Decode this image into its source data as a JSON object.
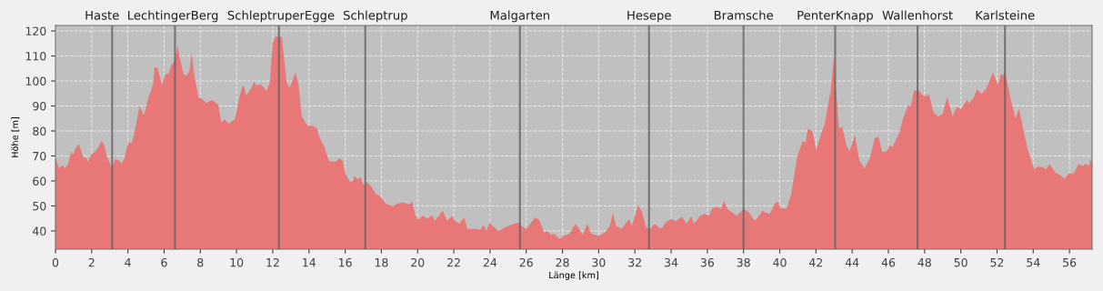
{
  "chart_data": {
    "type": "area",
    "xlabel": "Länge [km]",
    "ylabel": "Höhe [m]",
    "x": [
      0,
      0.2,
      0.37,
      0.54,
      0.7,
      0.87,
      0.95,
      1.12,
      1.29,
      1.54,
      1.71,
      1.79,
      1.96,
      2.21,
      2.38,
      2.54,
      2.71,
      2.8,
      3.05,
      3.13,
      3.3,
      3.55,
      3.63,
      3.8,
      3.97,
      4.05,
      4.22,
      4.39,
      4.64,
      4.89,
      5.14,
      5.39,
      5.47,
      5.64,
      5.89,
      6.06,
      6.23,
      6.39,
      6.6,
      6.73,
      6.9,
      7.07,
      7.23,
      7.4,
      7.52,
      7.65,
      7.9,
      8.07,
      8.32,
      8.66,
      8.99,
      9.16,
      9.33,
      9.58,
      9.74,
      9.91,
      10.16,
      10.33,
      10.41,
      10.53,
      10.83,
      10.97,
      11.08,
      11.33,
      11.67,
      11.84,
      12.0,
      12.17,
      12.42,
      12.5,
      12.76,
      12.93,
      13.26,
      13.43,
      13.6,
      13.93,
      14.18,
      14.43,
      14.6,
      14.85,
      15.1,
      15.44,
      15.69,
      15.85,
      16.02,
      16.27,
      16.44,
      16.52,
      16.69,
      16.86,
      17.03,
      17.19,
      17.44,
      17.69,
      17.94,
      18.25,
      18.62,
      18.87,
      19.2,
      19.54,
      19.7,
      19.87,
      20.04,
      20.29,
      20.54,
      20.79,
      20.96,
      21.38,
      21.63,
      21.91,
      22.05,
      22.3,
      22.58,
      22.75,
      23.21,
      23.47,
      23.64,
      23.8,
      23.97,
      24.22,
      24.47,
      24.9,
      25.31,
      25.6,
      25.73,
      25.98,
      26.2,
      26.49,
      26.71,
      26.99,
      27.16,
      27.37,
      27.57,
      27.83,
      28.08,
      28.41,
      28.71,
      28.95,
      29.11,
      29.38,
      29.58,
      30.0,
      30.34,
      30.62,
      30.79,
      30.96,
      31.26,
      31.68,
      31.84,
      32.18,
      32.4,
      32.6,
      32.8,
      33.1,
      33.35,
      33.52,
      33.68,
      34.02,
      34.27,
      34.6,
      34.86,
      35.11,
      35.28,
      35.61,
      35.86,
      36.11,
      36.25,
      36.58,
      36.75,
      36.92,
      37.12,
      37.62,
      38.0,
      38.29,
      38.42,
      38.62,
      38.79,
      39.04,
      39.21,
      39.46,
      39.71,
      39.88,
      40.05,
      40.38,
      40.63,
      40.97,
      41.27,
      41.43,
      41.55,
      41.8,
      42.02,
      42.23,
      42.48,
      42.81,
      42.98,
      43.11,
      43.28,
      43.45,
      43.68,
      43.85,
      44.15,
      44.4,
      44.69,
      44.99,
      45.24,
      45.46,
      45.66,
      45.91,
      46.08,
      46.24,
      46.41,
      46.63,
      46.79,
      47.08,
      47.24,
      47.41,
      47.63,
      47.96,
      48.25,
      48.5,
      48.75,
      49.0,
      49.25,
      49.54,
      49.76,
      50.0,
      50.34,
      50.47,
      50.71,
      50.9,
      51.15,
      51.43,
      51.77,
      52.05,
      52.22,
      52.32,
      52.44,
      52.69,
      53.02,
      53.22,
      53.44,
      53.69,
      54.06,
      54.23,
      54.53,
      54.7,
      54.9,
      55.2,
      55.54,
      55.74,
      55.95,
      56.24,
      56.51,
      56.71,
      56.91,
      57.07,
      57.17,
      57.25
    ],
    "series": [
      {
        "color": "#e87878",
        "values": [
          69.3,
          65.1,
          66.3,
          65.1,
          67,
          71.8,
          70.5,
          73,
          74.8,
          69.3,
          69.3,
          67.5,
          70.5,
          71.8,
          73.6,
          76,
          74.2,
          70.5,
          66.3,
          65.7,
          68.7,
          68.1,
          66.9,
          68.7,
          74.2,
          75.4,
          75.4,
          80.2,
          89.9,
          86.3,
          93.6,
          98.4,
          105.5,
          105.1,
          98.4,
          102.7,
          102.7,
          106.3,
          108.1,
          114.4,
          108.1,
          102.7,
          102.1,
          103.9,
          111.2,
          103.3,
          93.3,
          93,
          91.2,
          92.4,
          90.5,
          83.3,
          84.5,
          82.9,
          83.9,
          84.5,
          93.6,
          97.8,
          97.8,
          94.2,
          97.2,
          99.9,
          98.2,
          98.7,
          96,
          99.6,
          115.4,
          117.8,
          117.6,
          117.8,
          99.6,
          97.2,
          103.5,
          98.4,
          85.7,
          82.1,
          82.1,
          81.2,
          77.2,
          73.6,
          68.1,
          67.5,
          69.1,
          68.1,
          62.7,
          59.6,
          60.2,
          62.1,
          60.6,
          61.5,
          58.2,
          59.6,
          57.8,
          54.8,
          53.8,
          50.9,
          49.9,
          50.9,
          51.4,
          50.5,
          51.8,
          46.3,
          44.5,
          46.1,
          44.8,
          46.3,
          44.1,
          48.1,
          44.1,
          46.1,
          44.1,
          42.9,
          45.3,
          40.8,
          40.8,
          40.5,
          42.4,
          40,
          43.3,
          41.5,
          40,
          41.7,
          42.9,
          43.3,
          42.1,
          40.8,
          42.7,
          45.3,
          44.5,
          39.3,
          40,
          38.4,
          38.8,
          36.8,
          38.1,
          39,
          42.9,
          40.5,
          38.4,
          42.9,
          39,
          38.1,
          39.3,
          42.1,
          47.3,
          42.1,
          40.8,
          44.8,
          42.1,
          50.5,
          47.5,
          41.7,
          40.5,
          42.9,
          41.2,
          41.2,
          43.3,
          44.8,
          43.9,
          45.7,
          42.9,
          45.7,
          42.9,
          46.1,
          46.9,
          46.1,
          49,
          49.7,
          48.7,
          52.1,
          48.7,
          46.1,
          48.7,
          47.5,
          46.1,
          44.1,
          45.3,
          48.1,
          47.3,
          46.9,
          50.9,
          51.8,
          49,
          49,
          54.8,
          69.9,
          76,
          75.4,
          80.8,
          80,
          72.4,
          77.8,
          82.7,
          96,
          109.3,
          96,
          80.8,
          81.7,
          74.2,
          71.8,
          78.4,
          68.1,
          65.1,
          69.3,
          77.2,
          77.6,
          71.5,
          71.8,
          74.2,
          73.6,
          76.4,
          79.6,
          84.5,
          90.2,
          89.9,
          96,
          96.5,
          93.8,
          94.5,
          87.5,
          85.7,
          86.9,
          93.6,
          85.7,
          89.6,
          88.7,
          92.4,
          91.1,
          93.3,
          96.6,
          94.8,
          97.2,
          103.5,
          98.4,
          102.7,
          102.1,
          103.9,
          94.8,
          85.1,
          89,
          80.8,
          72.9,
          64.5,
          65.7,
          65.5,
          64.5,
          66.7,
          63.5,
          62.1,
          60.8,
          63,
          63,
          66.9,
          65.9,
          66.9,
          65.9,
          68.7,
          66.9
        ]
      }
    ],
    "xlim": [
      0,
      57.25
    ],
    "ylim": [
      32.7,
      122.2
    ],
    "xticks": [
      0,
      2,
      4,
      6,
      8,
      10,
      12,
      14,
      16,
      18,
      20,
      22,
      24,
      26,
      28,
      30,
      32,
      34,
      36,
      38,
      40,
      42,
      44,
      46,
      48,
      50,
      52,
      54,
      56
    ],
    "yticks": [
      40,
      50,
      60,
      70,
      80,
      90,
      100,
      110,
      120
    ],
    "grid": true,
    "ref_lines": [
      {
        "axis": "x",
        "value": 3.13,
        "label": "Haste",
        "color": "#606060"
      },
      {
        "axis": "x",
        "value": 6.6,
        "label": "LechtingerBerg",
        "color": "#606060"
      },
      {
        "axis": "x",
        "value": 12.34,
        "label": "SchleptruperEgge",
        "color": "#606060"
      },
      {
        "axis": "x",
        "value": 17.11,
        "label": "Schleptrup",
        "color": "#606060"
      },
      {
        "axis": "x",
        "value": 25.65,
        "label": "Malgarten",
        "color": "#606060"
      },
      {
        "axis": "x",
        "value": 32.78,
        "label": "Hesepe",
        "color": "#606060"
      },
      {
        "axis": "x",
        "value": 38.0,
        "label": "Bramsche",
        "color": "#606060"
      },
      {
        "axis": "x",
        "value": 43.06,
        "label": "PenterKnapp",
        "color": "#606060"
      },
      {
        "axis": "x",
        "value": 47.61,
        "label": "Wallenhorst",
        "color": "#606060"
      },
      {
        "axis": "x",
        "value": 52.44,
        "label": "Karlsteine",
        "color": "#606060"
      }
    ]
  }
}
